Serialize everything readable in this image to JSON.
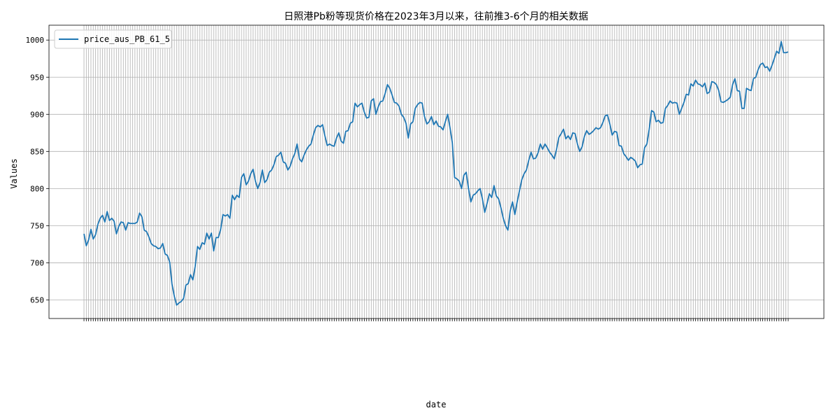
{
  "chart_data": {
    "type": "line",
    "title": "日照港Pb粉等现货价格在2023年3月以来，往前推3-6个月的相关数据",
    "xlabel": "date",
    "ylabel": "Values",
    "ylim": [
      625,
      1020
    ],
    "yticks": [
      650,
      700,
      750,
      800,
      850,
      900,
      950,
      1000
    ],
    "grid": true,
    "legend_position": "top-left",
    "series": [
      {
        "name": "price_aus_PB_61_5",
        "color": "#1f77b4",
        "values": [
          739,
          723,
          731,
          745,
          732,
          738,
          752,
          760,
          764,
          755,
          769,
          757,
          760,
          756,
          739,
          749,
          755,
          754,
          744,
          754,
          753,
          753,
          753,
          755,
          767,
          762,
          744,
          742,
          735,
          726,
          723,
          722,
          719,
          720,
          726,
          712,
          710,
          701,
          671,
          655,
          643,
          646,
          648,
          652,
          670,
          672,
          684,
          677,
          695,
          722,
          718,
          727,
          725,
          740,
          732,
          740,
          716,
          734,
          734,
          745,
          765,
          763,
          765,
          760,
          791,
          785,
          791,
          788,
          815,
          820,
          805,
          810,
          820,
          826,
          810,
          800,
          808,
          825,
          808,
          812,
          822,
          825,
          832,
          843,
          845,
          849,
          836,
          834,
          825,
          830,
          840,
          847,
          860,
          840,
          836,
          845,
          852,
          857,
          860,
          872,
          882,
          885,
          883,
          886,
          871,
          858,
          860,
          858,
          857,
          868,
          875,
          864,
          861,
          877,
          878,
          888,
          890,
          915,
          910,
          913,
          915,
          903,
          895,
          896,
          918,
          921,
          900,
          910,
          917,
          918,
          928,
          940,
          935,
          926,
          916,
          915,
          911,
          900,
          896,
          888,
          868,
          887,
          890,
          908,
          913,
          916,
          915,
          897,
          887,
          890,
          897,
          886,
          891,
          884,
          883,
          879,
          890,
          900,
          882,
          862,
          815,
          813,
          810,
          800,
          818,
          822,
          800,
          782,
          791,
          793,
          797,
          800,
          786,
          768,
          780,
          793,
          788,
          804,
          790,
          786,
          774,
          760,
          750,
          744,
          770,
          782,
          765,
          782,
          797,
          812,
          820,
          825,
          838,
          849,
          840,
          841,
          848,
          860,
          853,
          860,
          855,
          849,
          845,
          840,
          853,
          869,
          874,
          880,
          867,
          871,
          866,
          875,
          874,
          860,
          850,
          856,
          870,
          878,
          873,
          875,
          878,
          882,
          880,
          882,
          889,
          898,
          899,
          887,
          872,
          877,
          876,
          858,
          857,
          847,
          843,
          838,
          842,
          840,
          837,
          828,
          832,
          833,
          855,
          860,
          880,
          905,
          903,
          890,
          892,
          888,
          889,
          908,
          912,
          918,
          915,
          916,
          915,
          900,
          908,
          916,
          927,
          926,
          941,
          938,
          946,
          941,
          940,
          937,
          942,
          928,
          930,
          944,
          943,
          940,
          932,
          917,
          916,
          918,
          920,
          923,
          940,
          948,
          932,
          931,
          908,
          908,
          935,
          933,
          932,
          948,
          950,
          960,
          967,
          969,
          963,
          964,
          958,
          966,
          975,
          985,
          982,
          998,
          983,
          983,
          984
        ]
      }
    ],
    "x_tick_labels_note": ""
  }
}
